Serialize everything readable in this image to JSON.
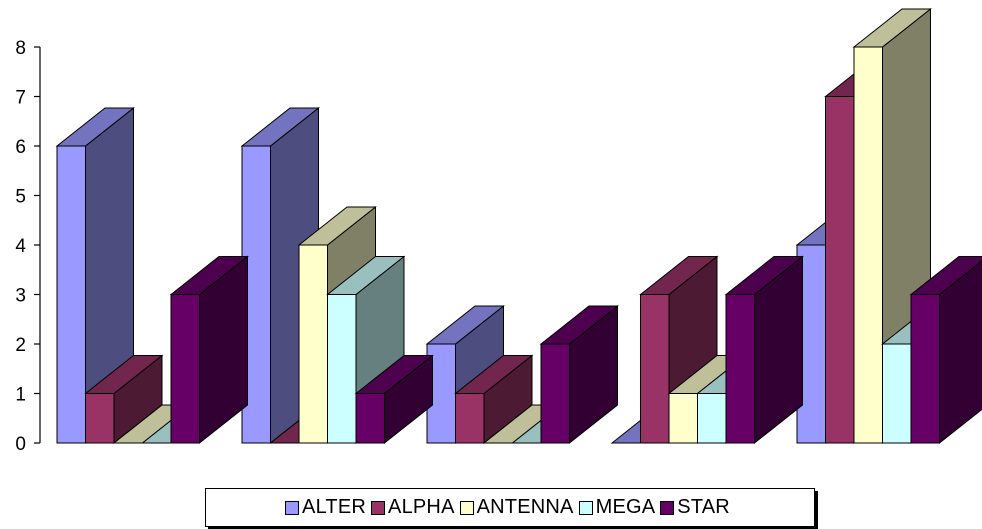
{
  "chart_data": {
    "type": "bar",
    "title": "",
    "xlabel": "",
    "ylabel": "",
    "ylim": [
      0,
      8
    ],
    "yticks": [
      0,
      1,
      2,
      3,
      4,
      5,
      6,
      7,
      8
    ],
    "categories": [
      "",
      "",
      "",
      "",
      ""
    ],
    "series": [
      {
        "name": "ALTER",
        "values": [
          6,
          6,
          2,
          0,
          4
        ],
        "color": "#9999ff"
      },
      {
        "name": "ALPHA",
        "values": [
          1,
          0,
          1,
          3,
          7
        ],
        "color": "#993366"
      },
      {
        "name": "ANTENNA",
        "values": [
          0,
          4,
          0,
          1,
          8
        ],
        "color": "#ffffcc"
      },
      {
        "name": "MEGA",
        "values": [
          0,
          3,
          0,
          1,
          2
        ],
        "color": "#ccffff"
      },
      {
        "name": "STAR",
        "values": [
          3,
          1,
          2,
          3,
          3
        ],
        "color": "#660066"
      }
    ],
    "grid": false,
    "legend_position": "bottom",
    "three_d": true
  }
}
